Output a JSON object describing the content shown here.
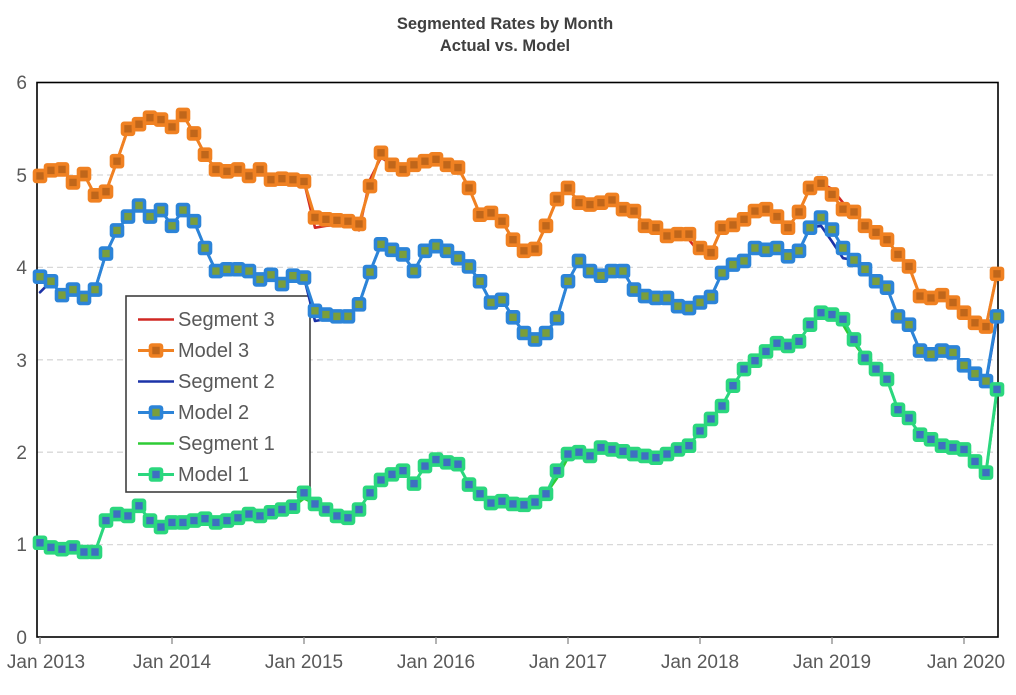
{
  "title": {
    "line1": "Segmented Rates by Month",
    "line2": "Actual vs. Model"
  },
  "chart_data": {
    "type": "line",
    "title": "Segmented Rates by Month",
    "subtitle": "Actual vs. Model",
    "x_start": "Jan 2013",
    "x_end": "Apr 2020",
    "points_per_series": 88,
    "x_tick_labels": [
      "Jan 2013",
      "Jan 2014",
      "Jan 2015",
      "Jan 2016",
      "Jan 2017",
      "Jan 2018",
      "Jan 2019",
      "Jan 2020"
    ],
    "y_tick_labels": [
      "0",
      "1",
      "2",
      "3",
      "4",
      "5",
      "6"
    ],
    "ylim": [
      0,
      6
    ],
    "grid": "horizontal-dashed",
    "legend_position": "upper-left-inside",
    "series": [
      {
        "name": "Segment 3",
        "style": "line",
        "color": "#d02823",
        "values": [
          4.93,
          5.05,
          5.06,
          4.92,
          5.01,
          4.78,
          4.82,
          5.15,
          5.5,
          5.55,
          5.62,
          5.6,
          5.52,
          5.65,
          5.45,
          5.22,
          5.06,
          5.04,
          5.06,
          4.99,
          5.06,
          4.95,
          4.96,
          4.95,
          4.93,
          4.43,
          4.45,
          4.46,
          4.47,
          4.4,
          4.95,
          5.19,
          5.11,
          5.06,
          5.11,
          5.15,
          5.17,
          5.11,
          5.08,
          4.86,
          4.57,
          4.59,
          4.5,
          4.3,
          4.18,
          4.2,
          4.45,
          4.74,
          4.86,
          4.7,
          4.68,
          4.7,
          4.73,
          4.63,
          4.61,
          4.45,
          4.43,
          4.34,
          4.31,
          4.3,
          4.15,
          4.16,
          4.43,
          4.46,
          4.52,
          4.61,
          4.63,
          4.55,
          4.43,
          4.6,
          4.86,
          4.91,
          4.85,
          4.7,
          4.6,
          4.45,
          4.38,
          4.3,
          4.14,
          4.01,
          3.69,
          3.67,
          3.7,
          3.62,
          3.51,
          3.4,
          3.36,
          3.93
        ]
      },
      {
        "name": "Model 3",
        "style": "line-markers",
        "color": "#f08122",
        "marker_fill": "#c0661a",
        "values": [
          4.99,
          5.05,
          5.06,
          4.92,
          5.01,
          4.78,
          4.82,
          5.15,
          5.5,
          5.55,
          5.62,
          5.6,
          5.52,
          5.65,
          5.45,
          5.22,
          5.06,
          5.04,
          5.06,
          4.99,
          5.06,
          4.95,
          4.96,
          4.95,
          4.93,
          4.54,
          4.52,
          4.51,
          4.5,
          4.47,
          4.88,
          5.24,
          5.11,
          5.06,
          5.11,
          5.15,
          5.17,
          5.11,
          5.08,
          4.86,
          4.57,
          4.59,
          4.5,
          4.3,
          4.18,
          4.2,
          4.45,
          4.74,
          4.86,
          4.7,
          4.68,
          4.7,
          4.73,
          4.63,
          4.61,
          4.45,
          4.43,
          4.34,
          4.36,
          4.36,
          4.21,
          4.16,
          4.43,
          4.46,
          4.52,
          4.61,
          4.63,
          4.55,
          4.43,
          4.6,
          4.86,
          4.91,
          4.79,
          4.63,
          4.6,
          4.45,
          4.38,
          4.3,
          4.14,
          4.01,
          3.69,
          3.67,
          3.7,
          3.62,
          3.51,
          3.4,
          3.36,
          3.93
        ]
      },
      {
        "name": "Segment 2",
        "style": "line",
        "color": "#1c33a8",
        "values": [
          3.73,
          3.85,
          3.7,
          3.76,
          3.67,
          3.76,
          4.15,
          4.4,
          4.55,
          4.67,
          4.55,
          4.62,
          4.45,
          4.62,
          4.5,
          4.21,
          3.96,
          3.98,
          3.98,
          3.96,
          3.87,
          3.92,
          3.82,
          3.91,
          3.89,
          3.42,
          3.44,
          3.47,
          3.47,
          3.6,
          3.95,
          4.25,
          4.19,
          4.14,
          3.96,
          4.18,
          4.23,
          4.18,
          4.1,
          4.01,
          3.85,
          3.62,
          3.65,
          3.46,
          3.29,
          3.22,
          3.29,
          3.45,
          3.85,
          4.07,
          3.96,
          3.91,
          3.96,
          3.96,
          3.76,
          3.69,
          3.67,
          3.67,
          3.58,
          3.56,
          3.62,
          3.68,
          3.94,
          4.03,
          4.07,
          4.21,
          4.19,
          4.21,
          4.12,
          4.18,
          4.43,
          4.45,
          4.28,
          4.1,
          4.08,
          3.98,
          3.85,
          3.78,
          3.47,
          3.38,
          3.1,
          3.06,
          3.1,
          3.08,
          2.94,
          2.85,
          2.75,
          3.44
        ]
      },
      {
        "name": "Model 2",
        "style": "line-markers",
        "color": "#2c84d8",
        "marker_fill": "#7a9e3c",
        "values": [
          3.9,
          3.85,
          3.7,
          3.76,
          3.67,
          3.76,
          4.15,
          4.4,
          4.55,
          4.67,
          4.55,
          4.62,
          4.45,
          4.62,
          4.5,
          4.21,
          3.96,
          3.98,
          3.98,
          3.96,
          3.87,
          3.92,
          3.82,
          3.91,
          3.89,
          3.53,
          3.49,
          3.47,
          3.47,
          3.6,
          3.95,
          4.25,
          4.19,
          4.14,
          3.96,
          4.18,
          4.23,
          4.18,
          4.1,
          4.01,
          3.85,
          3.62,
          3.65,
          3.46,
          3.29,
          3.22,
          3.29,
          3.45,
          3.85,
          4.07,
          3.96,
          3.91,
          3.96,
          3.96,
          3.76,
          3.69,
          3.67,
          3.67,
          3.58,
          3.56,
          3.62,
          3.68,
          3.94,
          4.03,
          4.07,
          4.21,
          4.19,
          4.21,
          4.12,
          4.18,
          4.43,
          4.54,
          4.41,
          4.21,
          4.08,
          3.98,
          3.85,
          3.78,
          3.47,
          3.38,
          3.1,
          3.06,
          3.1,
          3.08,
          2.94,
          2.85,
          2.77,
          3.47
        ]
      },
      {
        "name": "Segment 1",
        "style": "line",
        "color": "#2ecc35",
        "values": [
          1.02,
          0.97,
          0.95,
          0.97,
          0.92,
          0.92,
          1.26,
          1.33,
          1.31,
          1.42,
          1.26,
          1.19,
          1.24,
          1.24,
          1.26,
          1.28,
          1.24,
          1.26,
          1.29,
          1.33,
          1.31,
          1.35,
          1.38,
          1.41,
          1.5,
          1.44,
          1.38,
          1.31,
          1.29,
          1.38,
          1.56,
          1.7,
          1.76,
          1.8,
          1.66,
          1.85,
          1.92,
          1.89,
          1.87,
          1.65,
          1.55,
          1.45,
          1.47,
          1.44,
          1.43,
          1.46,
          1.55,
          1.72,
          1.94,
          2.0,
          1.96,
          2.05,
          2.03,
          2.01,
          1.98,
          1.96,
          1.94,
          1.98,
          2.03,
          2.07,
          2.23,
          2.36,
          2.5,
          2.72,
          2.9,
          2.99,
          3.09,
          3.18,
          3.15,
          3.2,
          3.38,
          3.51,
          3.49,
          3.38,
          3.18,
          3.02,
          2.9,
          2.79,
          2.46,
          2.37,
          2.19,
          2.14,
          2.07,
          2.05,
          2.03,
          1.9,
          1.78,
          2.65
        ]
      },
      {
        "name": "Model 1",
        "style": "line-markers",
        "color": "#2bd77e",
        "marker_fill": "#3e6fc1",
        "values": [
          1.02,
          0.97,
          0.95,
          0.97,
          0.92,
          0.92,
          1.26,
          1.33,
          1.31,
          1.42,
          1.26,
          1.19,
          1.24,
          1.24,
          1.26,
          1.28,
          1.24,
          1.26,
          1.29,
          1.33,
          1.31,
          1.35,
          1.38,
          1.41,
          1.56,
          1.44,
          1.38,
          1.31,
          1.29,
          1.38,
          1.56,
          1.7,
          1.76,
          1.8,
          1.66,
          1.85,
          1.92,
          1.89,
          1.87,
          1.65,
          1.55,
          1.45,
          1.47,
          1.44,
          1.43,
          1.46,
          1.55,
          1.8,
          1.98,
          2.0,
          1.96,
          2.05,
          2.03,
          2.01,
          1.98,
          1.96,
          1.94,
          1.98,
          2.03,
          2.07,
          2.23,
          2.36,
          2.5,
          2.72,
          2.9,
          2.99,
          3.09,
          3.18,
          3.15,
          3.2,
          3.38,
          3.51,
          3.49,
          3.44,
          3.22,
          3.02,
          2.9,
          2.79,
          2.46,
          2.37,
          2.19,
          2.14,
          2.07,
          2.05,
          2.03,
          1.9,
          1.78,
          2.68
        ]
      }
    ]
  },
  "colors": {
    "background": "#ffffff",
    "plot_border": "#000000",
    "gridline": "#d8d8d8",
    "tick_label": "#595959",
    "title_text": "#3f3f3f",
    "legend_border": "#3f3f3f",
    "legend_background": "#ffffff"
  }
}
